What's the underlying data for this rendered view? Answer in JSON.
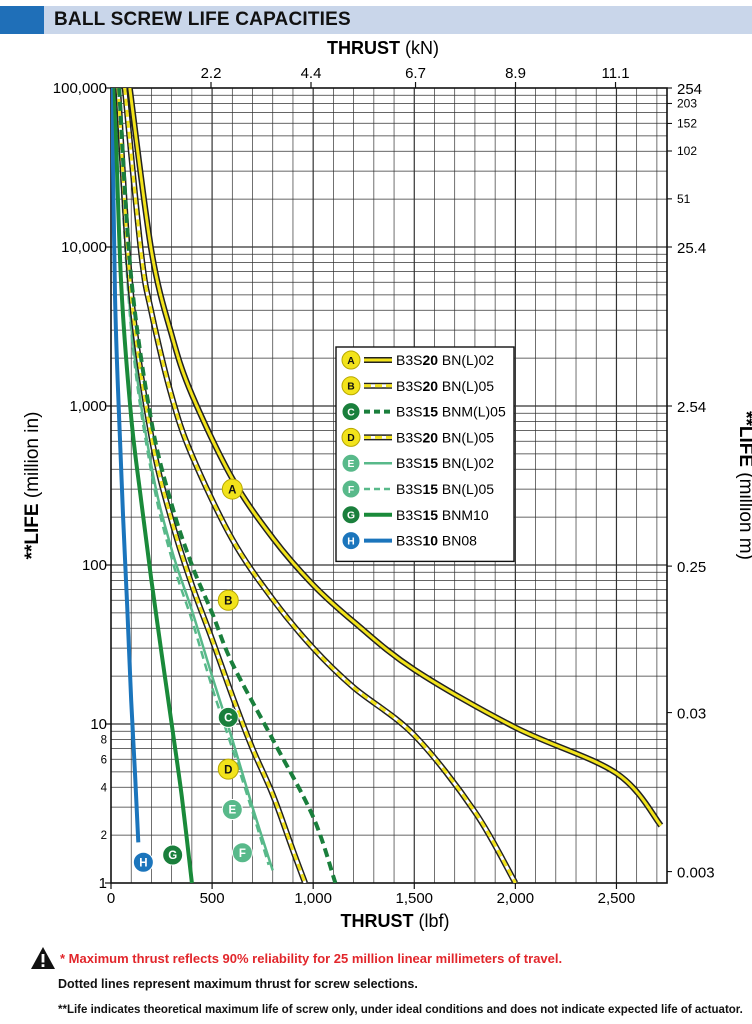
{
  "header": {
    "title": "BALL SCREW LIFE CAPACITIES",
    "accent_color": "#1f6fb8",
    "band_color": "#c9d6ea"
  },
  "chart_data": {
    "type": "line",
    "title": "BALL SCREW LIFE CAPACITIES",
    "x_axis": {
      "label_bold": "THRUST",
      "label_unit": "(lbf)",
      "range": [
        0,
        2750
      ],
      "ticks": [
        0,
        500,
        1000,
        1500,
        2000,
        2500
      ],
      "tick_labels": [
        "0",
        "500",
        "1,000",
        "1,500",
        "2,000",
        "2,500"
      ]
    },
    "x2_axis": {
      "label_bold": "THRUST",
      "label_unit": "(kN)",
      "ticks_lbf": [
        494.6,
        989.2,
        1506.2,
        2000.8,
        2495.4
      ],
      "tick_labels": [
        "2.2",
        "4.4",
        "6.7",
        "8.9",
        "11.1"
      ]
    },
    "y_axis": {
      "label_bold": "**LIFE",
      "label_unit": "(million in)",
      "scale": "log",
      "range": [
        1,
        100000
      ],
      "major_ticks": [
        1,
        10,
        100,
        1000,
        10000,
        100000
      ],
      "major_labels": [
        "1",
        "10",
        "100",
        "1,000",
        "10,000",
        "100,000"
      ],
      "minor_ticks": [
        2,
        4,
        6,
        8
      ],
      "minor_labels": [
        "2",
        "4",
        "6",
        "8"
      ]
    },
    "y2_axis": {
      "label_bold": "**LIFE",
      "label_unit": "(million m)",
      "ticks_in": [
        1.18,
        11.8,
        98.4,
        1000,
        10000,
        20078,
        40157,
        59843,
        79921,
        100000
      ],
      "tick_labels": [
        "0.003",
        "0.03",
        "0.25",
        "2.54",
        "25.4",
        "51",
        "102",
        "152",
        "203",
        "254"
      ],
      "big_flags": [
        true,
        true,
        true,
        true,
        true,
        false,
        false,
        false,
        false,
        true
      ]
    },
    "grid": true,
    "series": [
      {
        "key": "A",
        "name_prefix": "B3S",
        "name_bold": "20",
        "name_suffix": " BN(L)02",
        "style": "solid",
        "color": "#f2e31b",
        "outline": "#222222",
        "badge_color": "#f2e31b",
        "badge_text_color": "#111111",
        "label_point": [
          600,
          300
        ],
        "points": [
          [
            93,
            100000
          ],
          [
            200,
            9500
          ],
          [
            300,
            2800
          ],
          [
            400,
            1180
          ],
          [
            600,
            350
          ],
          [
            800,
            148
          ],
          [
            1000,
            75
          ],
          [
            1200,
            44
          ],
          [
            1500,
            22
          ],
          [
            2000,
            9.5
          ],
          [
            2500,
            4.9
          ],
          [
            2720,
            2.3
          ]
        ]
      },
      {
        "key": "B",
        "name_prefix": "B3S",
        "name_bold": "20",
        "name_suffix": " BN(L)05",
        "style": "dashed",
        "color": "#f2e31b",
        "outline": "#222222",
        "badge_color": "#f2e31b",
        "badge_text_color": "#111111",
        "label_point": [
          580,
          60
        ],
        "points": [
          [
            68,
            100000
          ],
          [
            150,
            9000
          ],
          [
            200,
            3900
          ],
          [
            300,
            1150
          ],
          [
            400,
            490
          ],
          [
            600,
            145
          ],
          [
            800,
            61
          ],
          [
            1000,
            30
          ],
          [
            1200,
            17
          ],
          [
            1500,
            8.5
          ],
          [
            1800,
            2.8
          ],
          [
            2000,
            1
          ]
        ]
      },
      {
        "key": "C",
        "name_prefix": "B3S",
        "name_bold": "15",
        "name_suffix": " BNM(L)05",
        "style": "dashed",
        "color": "#1a7f3c",
        "outline": null,
        "badge_color": "#1a7f3c",
        "badge_text_color": "#ffffff",
        "label_point": [
          580,
          11
        ],
        "points": [
          [
            40,
            100000
          ],
          [
            100,
            6400
          ],
          [
            200,
            800
          ],
          [
            300,
            240
          ],
          [
            400,
            100
          ],
          [
            500,
            50
          ],
          [
            600,
            24
          ],
          [
            800,
            8
          ],
          [
            1000,
            2.6
          ],
          [
            1110,
            1
          ]
        ]
      },
      {
        "key": "D",
        "name_prefix": "B3S",
        "name_bold": "20",
        "name_suffix": " BN(L)05",
        "style": "dashed",
        "color": "#f2e31b",
        "outline": "#222222",
        "badge_color": "#f2e31b",
        "badge_text_color": "#111111",
        "label_point": [
          580,
          5.2
        ],
        "points": [
          [
            35,
            100000
          ],
          [
            100,
            5000
          ],
          [
            200,
            640
          ],
          [
            300,
            190
          ],
          [
            400,
            75
          ],
          [
            500,
            34
          ],
          [
            600,
            15
          ],
          [
            700,
            7
          ],
          [
            800,
            3.6
          ],
          [
            900,
            1.6
          ],
          [
            960,
            1
          ]
        ]
      },
      {
        "key": "E",
        "name_prefix": "B3S",
        "name_bold": "15",
        "name_suffix": " BN(L)02",
        "style": "solid",
        "color": "#58b98a",
        "outline": null,
        "badge_color": "#58b98a",
        "badge_text_color": "#ffffff",
        "label_point": [
          600,
          2.9
        ],
        "points": [
          [
            28,
            100000
          ],
          [
            100,
            3300
          ],
          [
            200,
            420
          ],
          [
            300,
            125
          ],
          [
            400,
            52
          ],
          [
            500,
            20
          ],
          [
            600,
            8
          ],
          [
            700,
            3
          ],
          [
            800,
            1.2
          ]
        ]
      },
      {
        "key": "F",
        "name_prefix": "B3S",
        "name_bold": "15",
        "name_suffix": " BN(L)05",
        "style": "dashed",
        "color": "#58b98a",
        "outline": null,
        "badge_color": "#58b98a",
        "badge_text_color": "#ffffff",
        "label_point": [
          650,
          1.55
        ],
        "points": [
          [
            26,
            100000
          ],
          [
            100,
            3000
          ],
          [
            200,
            380
          ],
          [
            300,
            110
          ],
          [
            400,
            45
          ],
          [
            500,
            17
          ],
          [
            600,
            7
          ],
          [
            700,
            2.8
          ],
          [
            780,
            1.3
          ]
        ]
      },
      {
        "key": "G",
        "name_prefix": "B3S",
        "name_bold": "15",
        "name_suffix": " BNM10",
        "style": "solid",
        "color": "#1a8a3a",
        "outline": null,
        "badge_color": "#1a7f3c",
        "badge_text_color": "#ffffff",
        "label_point": [
          305,
          1.5
        ],
        "points": [
          [
            18,
            100000
          ],
          [
            50,
            6000
          ],
          [
            100,
            850
          ],
          [
            150,
            250
          ],
          [
            200,
            80
          ],
          [
            250,
            28
          ],
          [
            300,
            10
          ],
          [
            350,
            3.5
          ],
          [
            400,
            1
          ]
        ]
      },
      {
        "key": "H",
        "name_prefix": "B3S",
        "name_bold": "10",
        "name_suffix": " BN08",
        "style": "solid",
        "color": "#1b75bc",
        "outline": null,
        "badge_color": "#1b75bc",
        "badge_text_color": "#ffffff",
        "label_point": [
          160,
          1.35
        ],
        "points": [
          [
            5,
            100000
          ],
          [
            20,
            5000
          ],
          [
            40,
            850
          ],
          [
            60,
            200
          ],
          [
            80,
            55
          ],
          [
            100,
            14
          ],
          [
            120,
            4.5
          ],
          [
            135,
            1.8
          ]
        ]
      }
    ],
    "legend_placement": "center"
  },
  "footnotes": {
    "warning": "* Maximum thrust reflects 90% reliability for  25 million linear millimeters of travel.",
    "warning_color": "#e2262b",
    "dotted": "Dotted lines represent maximum thrust for screw selections.",
    "life": "**Life indicates theoretical maximum life of screw only, under ideal conditions and does not indicate expected life of actuator."
  },
  "icons": {
    "warning": "warning-triangle-icon"
  }
}
